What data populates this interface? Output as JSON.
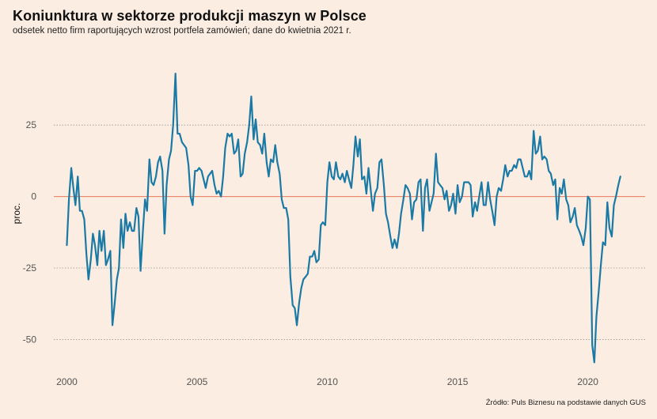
{
  "chart_data": {
    "type": "line",
    "title": "Koniunktura w sektorze produkcji maszyn w Polsce",
    "subtitle": "odsetek netto firm raportujących wzrost portfela zamówień; dane do kwietnia 2021 r.",
    "ylabel": "proc.",
    "xlabel": "",
    "caption": "Źródło: Puls Biznesu na podstawie danych GUS",
    "xlim": [
      1999.5,
      2022.2
    ],
    "ylim": [
      -59,
      48
    ],
    "x_ticks": [
      2000,
      2005,
      2010,
      2015,
      2020
    ],
    "x_tick_labels": [
      "2000",
      "2005",
      "2010",
      "2015",
      "2020"
    ],
    "y_ticks": [
      25,
      0,
      -25,
      -50
    ],
    "y_tick_labels": [
      "25",
      "0",
      "-25",
      "-50"
    ],
    "grid": "horizontal dotted",
    "reference_line": 0,
    "colors": {
      "line": "#1a7aa5",
      "zero_line": "#e8785a",
      "grid": "#999999",
      "background": "#fbede1"
    },
    "series": [
      {
        "name": "",
        "points": [
          [
            2000.0,
            -17
          ],
          [
            2000.08,
            -1
          ],
          [
            2000.17,
            10
          ],
          [
            2000.25,
            3
          ],
          [
            2000.33,
            -3
          ],
          [
            2000.42,
            7
          ],
          [
            2000.5,
            -5
          ],
          [
            2000.58,
            -5
          ],
          [
            2000.67,
            -8
          ],
          [
            2000.75,
            -20
          ],
          [
            2000.83,
            -29
          ],
          [
            2000.92,
            -22
          ],
          [
            2001.0,
            -13
          ],
          [
            2001.08,
            -17
          ],
          [
            2001.17,
            -24
          ],
          [
            2001.25,
            -12
          ],
          [
            2001.33,
            -19
          ],
          [
            2001.42,
            -12
          ],
          [
            2001.5,
            -24
          ],
          [
            2001.58,
            -22
          ],
          [
            2001.67,
            -19
          ],
          [
            2001.75,
            -45
          ],
          [
            2001.83,
            -38
          ],
          [
            2001.92,
            -29
          ],
          [
            2002.0,
            -25
          ],
          [
            2002.08,
            -8
          ],
          [
            2002.17,
            -18
          ],
          [
            2002.25,
            -6
          ],
          [
            2002.33,
            -12
          ],
          [
            2002.42,
            -9
          ],
          [
            2002.5,
            -12
          ],
          [
            2002.58,
            -12
          ],
          [
            2002.67,
            -4
          ],
          [
            2002.75,
            -7
          ],
          [
            2002.83,
            -26
          ],
          [
            2002.92,
            -12
          ],
          [
            2003.0,
            -1
          ],
          [
            2003.08,
            -5
          ],
          [
            2003.17,
            13
          ],
          [
            2003.25,
            5
          ],
          [
            2003.33,
            4
          ],
          [
            2003.42,
            7
          ],
          [
            2003.5,
            12
          ],
          [
            2003.58,
            14
          ],
          [
            2003.67,
            9
          ],
          [
            2003.75,
            -13
          ],
          [
            2003.83,
            4
          ],
          [
            2003.92,
            13
          ],
          [
            2004.0,
            16
          ],
          [
            2004.08,
            25
          ],
          [
            2004.17,
            43
          ],
          [
            2004.25,
            22
          ],
          [
            2004.33,
            22
          ],
          [
            2004.42,
            19
          ],
          [
            2004.5,
            18
          ],
          [
            2004.58,
            17
          ],
          [
            2004.67,
            11
          ],
          [
            2004.75,
            0
          ],
          [
            2004.83,
            -3
          ],
          [
            2004.92,
            9
          ],
          [
            2005.0,
            9
          ],
          [
            2005.08,
            10
          ],
          [
            2005.17,
            9
          ],
          [
            2005.25,
            6
          ],
          [
            2005.33,
            3
          ],
          [
            2005.42,
            7
          ],
          [
            2005.5,
            8
          ],
          [
            2005.58,
            9
          ],
          [
            2005.67,
            4
          ],
          [
            2005.75,
            1
          ],
          [
            2005.83,
            2
          ],
          [
            2005.92,
            0
          ],
          [
            2006.0,
            7
          ],
          [
            2006.08,
            17
          ],
          [
            2006.17,
            22
          ],
          [
            2006.25,
            21
          ],
          [
            2006.33,
            22
          ],
          [
            2006.42,
            15
          ],
          [
            2006.5,
            16
          ],
          [
            2006.58,
            20
          ],
          [
            2006.67,
            7
          ],
          [
            2006.75,
            8
          ],
          [
            2006.83,
            15
          ],
          [
            2006.92,
            19
          ],
          [
            2007.0,
            25
          ],
          [
            2007.08,
            35
          ],
          [
            2007.17,
            20
          ],
          [
            2007.25,
            27
          ],
          [
            2007.33,
            19
          ],
          [
            2007.42,
            18
          ],
          [
            2007.5,
            15
          ],
          [
            2007.58,
            22
          ],
          [
            2007.67,
            12
          ],
          [
            2007.75,
            7
          ],
          [
            2007.83,
            13
          ],
          [
            2007.92,
            12
          ],
          [
            2008.0,
            18
          ],
          [
            2008.08,
            12
          ],
          [
            2008.17,
            8
          ],
          [
            2008.25,
            -1
          ],
          [
            2008.33,
            -4
          ],
          [
            2008.42,
            -4
          ],
          [
            2008.5,
            -8
          ],
          [
            2008.58,
            -28
          ],
          [
            2008.67,
            -38
          ],
          [
            2008.75,
            -39
          ],
          [
            2008.83,
            -45
          ],
          [
            2008.92,
            -37
          ],
          [
            2009.0,
            -32
          ],
          [
            2009.08,
            -29
          ],
          [
            2009.17,
            -28
          ],
          [
            2009.25,
            -27
          ],
          [
            2009.33,
            -21
          ],
          [
            2009.42,
            -21
          ],
          [
            2009.5,
            -19
          ],
          [
            2009.58,
            -23
          ],
          [
            2009.67,
            -22
          ],
          [
            2009.75,
            -10
          ],
          [
            2009.83,
            -9
          ],
          [
            2009.92,
            -10
          ],
          [
            2010.0,
            5
          ],
          [
            2010.08,
            12
          ],
          [
            2010.17,
            7
          ],
          [
            2010.25,
            6
          ],
          [
            2010.33,
            12
          ],
          [
            2010.42,
            7
          ],
          [
            2010.5,
            6
          ],
          [
            2010.58,
            8
          ],
          [
            2010.67,
            5
          ],
          [
            2010.75,
            9
          ],
          [
            2010.83,
            6
          ],
          [
            2010.92,
            3
          ],
          [
            2011.0,
            11
          ],
          [
            2011.08,
            21
          ],
          [
            2011.17,
            14
          ],
          [
            2011.25,
            20
          ],
          [
            2011.33,
            6
          ],
          [
            2011.42,
            7
          ],
          [
            2011.5,
            1
          ],
          [
            2011.58,
            10
          ],
          [
            2011.67,
            2
          ],
          [
            2011.75,
            -5
          ],
          [
            2011.83,
            1
          ],
          [
            2011.92,
            3
          ],
          [
            2012.0,
            12
          ],
          [
            2012.08,
            13
          ],
          [
            2012.17,
            4
          ],
          [
            2012.25,
            -6
          ],
          [
            2012.33,
            -9
          ],
          [
            2012.42,
            -14
          ],
          [
            2012.5,
            -18
          ],
          [
            2012.58,
            -15
          ],
          [
            2012.67,
            -18
          ],
          [
            2012.75,
            -13
          ],
          [
            2012.83,
            -6
          ],
          [
            2012.92,
            -1
          ],
          [
            2013.0,
            4
          ],
          [
            2013.08,
            3
          ],
          [
            2013.17,
            1
          ],
          [
            2013.25,
            -8
          ],
          [
            2013.33,
            -2
          ],
          [
            2013.42,
            -1
          ],
          [
            2013.5,
            5
          ],
          [
            2013.58,
            6
          ],
          [
            2013.67,
            -12
          ],
          [
            2013.75,
            3
          ],
          [
            2013.83,
            6
          ],
          [
            2013.92,
            -5
          ],
          [
            2014.0,
            -2
          ],
          [
            2014.08,
            1
          ],
          [
            2014.17,
            15
          ],
          [
            2014.25,
            5
          ],
          [
            2014.33,
            4
          ],
          [
            2014.42,
            3
          ],
          [
            2014.5,
            -1
          ],
          [
            2014.58,
            2
          ],
          [
            2014.67,
            -5
          ],
          [
            2014.75,
            -3
          ],
          [
            2014.83,
            1
          ],
          [
            2014.92,
            -6
          ],
          [
            2015.0,
            4
          ],
          [
            2015.08,
            -2
          ],
          [
            2015.17,
            0
          ],
          [
            2015.25,
            5
          ],
          [
            2015.33,
            5
          ],
          [
            2015.42,
            5
          ],
          [
            2015.5,
            4
          ],
          [
            2015.58,
            -7
          ],
          [
            2015.67,
            -2
          ],
          [
            2015.75,
            -5
          ],
          [
            2015.83,
            0
          ],
          [
            2015.92,
            5
          ],
          [
            2016.0,
            -3
          ],
          [
            2016.08,
            -3
          ],
          [
            2016.17,
            5
          ],
          [
            2016.25,
            -1
          ],
          [
            2016.33,
            -5
          ],
          [
            2016.42,
            -10
          ],
          [
            2016.5,
            0
          ],
          [
            2016.58,
            3
          ],
          [
            2016.67,
            2
          ],
          [
            2016.75,
            6
          ],
          [
            2016.83,
            11
          ],
          [
            2016.92,
            7
          ],
          [
            2017.0,
            9
          ],
          [
            2017.08,
            9
          ],
          [
            2017.17,
            11
          ],
          [
            2017.25,
            10
          ],
          [
            2017.33,
            13
          ],
          [
            2017.42,
            13
          ],
          [
            2017.5,
            10
          ],
          [
            2017.58,
            7
          ],
          [
            2017.67,
            7
          ],
          [
            2017.75,
            9
          ],
          [
            2017.83,
            6
          ],
          [
            2017.92,
            23
          ],
          [
            2018.0,
            15
          ],
          [
            2018.08,
            16
          ],
          [
            2018.17,
            21
          ],
          [
            2018.25,
            13
          ],
          [
            2018.33,
            14
          ],
          [
            2018.42,
            13
          ],
          [
            2018.5,
            9
          ],
          [
            2018.58,
            8
          ],
          [
            2018.67,
            4
          ],
          [
            2018.75,
            6
          ],
          [
            2018.83,
            -8
          ],
          [
            2018.92,
            3
          ],
          [
            2019.0,
            1
          ],
          [
            2019.08,
            6
          ],
          [
            2019.17,
            -1
          ],
          [
            2019.25,
            -3
          ],
          [
            2019.33,
            -9
          ],
          [
            2019.42,
            -7
          ],
          [
            2019.5,
            -4
          ],
          [
            2019.58,
            -10
          ],
          [
            2019.67,
            -12
          ],
          [
            2019.75,
            -14
          ],
          [
            2019.83,
            -17
          ],
          [
            2019.92,
            -11
          ],
          [
            2020.0,
            0
          ],
          [
            2020.08,
            -1
          ],
          [
            2020.17,
            -52
          ],
          [
            2020.25,
            -58
          ],
          [
            2020.33,
            -42
          ],
          [
            2020.42,
            -33
          ],
          [
            2020.5,
            -24
          ],
          [
            2020.58,
            -16
          ],
          [
            2020.67,
            -17
          ],
          [
            2020.75,
            -2
          ],
          [
            2020.83,
            -11
          ],
          [
            2020.92,
            -14
          ],
          [
            2021.0,
            -3
          ],
          [
            2021.08,
            0
          ],
          [
            2021.17,
            4
          ],
          [
            2021.25,
            7
          ]
        ]
      }
    ]
  }
}
